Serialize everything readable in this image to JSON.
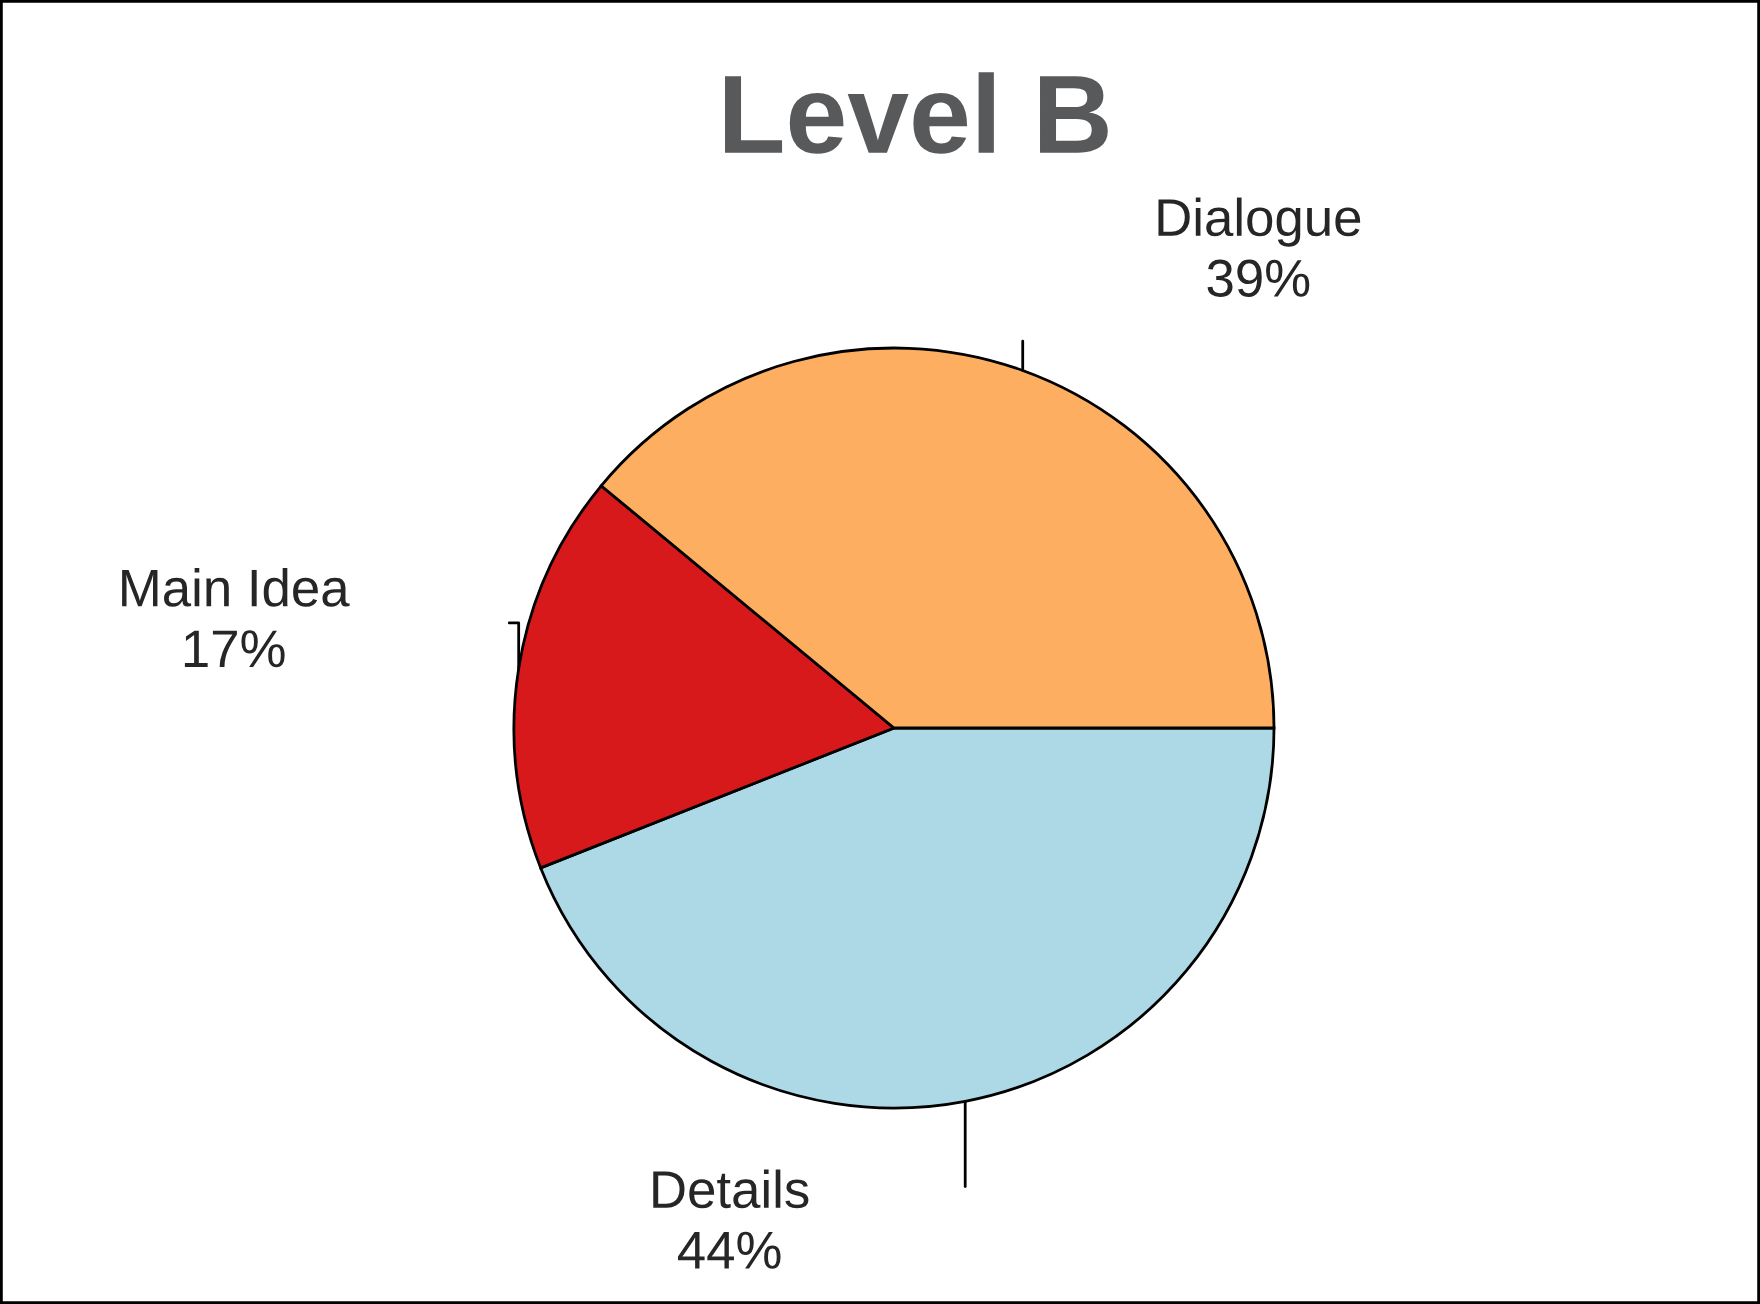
{
  "chart_data": {
    "type": "pie",
    "title": "Level B",
    "categories": [
      "Details",
      "Main Idea",
      "Dialogue"
    ],
    "values": [
      44,
      17,
      39
    ],
    "value_labels": [
      "44%",
      "17%",
      "39%"
    ],
    "colors": [
      "#add8e6",
      "#d7191c",
      "#fdae61"
    ]
  }
}
